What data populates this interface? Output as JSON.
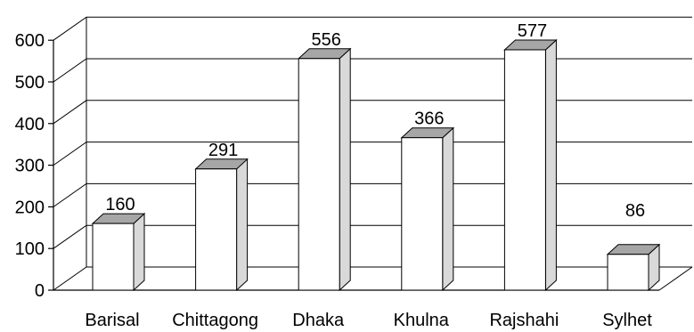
{
  "chart_data": {
    "type": "bar",
    "style": "3d",
    "categories": [
      "Barisal",
      "Chittagong",
      "Dhaka",
      "Khulna",
      "Rajshahi",
      "Sylhet"
    ],
    "values": [
      160,
      291,
      556,
      366,
      577,
      86
    ],
    "data_labels": [
      "160",
      "291",
      "556",
      "366",
      "577",
      "86"
    ],
    "ylim": [
      0,
      600
    ],
    "y_ticks": [
      0,
      100,
      200,
      300,
      400,
      500,
      600
    ],
    "y_tick_labels": [
      "0",
      "100",
      "200",
      "300",
      "400",
      "500",
      "600"
    ],
    "grid": true,
    "legend": "none",
    "colors": {
      "bar_front": "#ffffff",
      "bar_side": "#d9d9d9",
      "bar_top": "#a6a6a6",
      "stroke": "#000000",
      "background": "#ffffff"
    }
  }
}
